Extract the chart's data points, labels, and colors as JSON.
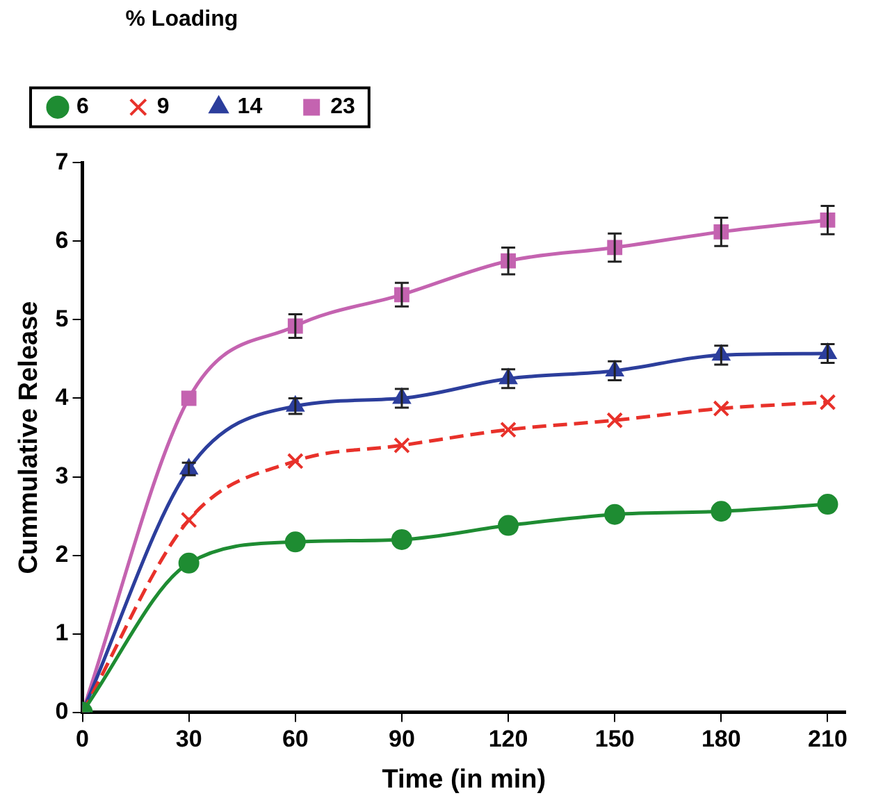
{
  "chart_data": {
    "type": "line",
    "xlabel": "Time (in min)",
    "ylabel": "Cummulative Release",
    "legend_title": "% Loading",
    "legend": "top left",
    "x": [
      0,
      30,
      60,
      90,
      120,
      150,
      180,
      210
    ],
    "series": [
      {
        "name": "6",
        "color": "#1e8c32",
        "marker": "circle",
        "line_style": "solid",
        "values": [
          0,
          1.9,
          2.17,
          2.2,
          2.38,
          2.52,
          2.56,
          2.65
        ]
      },
      {
        "name": "9",
        "color": "#e8312a",
        "marker": "cross",
        "line_style": "dashed",
        "values": [
          0,
          2.45,
          3.2,
          3.4,
          3.6,
          3.72,
          3.87,
          3.95
        ]
      },
      {
        "name": "14",
        "color": "#2c3e9c",
        "marker": "triangle",
        "line_style": "solid",
        "values": [
          0,
          3.1,
          3.9,
          4.0,
          4.25,
          4.35,
          4.55,
          4.57
        ],
        "errors": [
          null,
          0.08,
          0.1,
          0.12,
          0.12,
          0.12,
          0.12,
          0.12
        ]
      },
      {
        "name": "23",
        "color": "#c463b0",
        "marker": "square",
        "line_style": "solid",
        "values": [
          0,
          4.0,
          4.92,
          5.32,
          5.75,
          5.92,
          6.12,
          6.27
        ],
        "errors": [
          null,
          null,
          0.15,
          0.15,
          0.17,
          0.18,
          0.18,
          0.18
        ]
      }
    ],
    "xlim": [
      0,
      215
    ],
    "xticks": [
      0,
      30,
      60,
      90,
      120,
      150,
      180,
      210
    ],
    "ylim": [
      0,
      7
    ],
    "yticks": [
      0,
      1,
      2,
      3,
      4,
      5,
      6,
      7
    ],
    "grid": false
  }
}
